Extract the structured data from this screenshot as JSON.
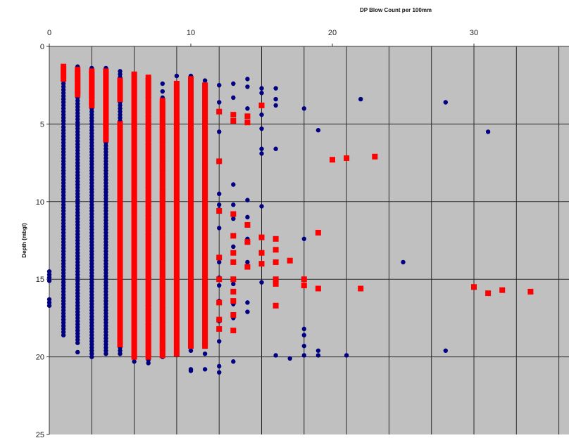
{
  "chart_data": {
    "type": "scatter",
    "title": "",
    "xlabel": "DP Blow Count  per 100mm",
    "ylabel": "Depth (mbgl)",
    "x_axis_position": "top",
    "y_axis_inverted": true,
    "xlim": [
      0,
      36
    ],
    "ylim": [
      0,
      25
    ],
    "x_ticks": [
      0,
      10,
      20,
      30
    ],
    "y_ticks": [
      0,
      5,
      10,
      15,
      20,
      25
    ],
    "x_gridlines": [
      3,
      6,
      9,
      12,
      15,
      18,
      21,
      24,
      27,
      30,
      33,
      36
    ],
    "y_gridlines": [
      5,
      10,
      15,
      20
    ],
    "plot_background": "#c0c0c0",
    "legend": "none",
    "series": [
      {
        "color": "#000080",
        "marker": "circle",
        "columns": [
          {
            "x": 0,
            "depths": [
              14.5,
              14.7,
              14.9,
              15.1,
              16.3,
              16.5,
              16.7
            ]
          },
          {
            "x": 1,
            "depths_range": [
              1.4,
              18.6
            ]
          },
          {
            "x": 2,
            "depths_range": [
              1.3,
              19.2
            ]
          },
          {
            "x": 2,
            "depths": [
              19.7
            ]
          },
          {
            "x": 3,
            "depths_range": [
              1.4,
              20.0
            ]
          },
          {
            "x": 4,
            "depths_range": [
              1.4,
              19.8
            ]
          },
          {
            "x": 5,
            "depths_range": [
              1.6,
              19.8
            ]
          },
          {
            "x": 6,
            "depths": [
              2.0,
              2.5,
              3.1,
              4.2,
              5.3,
              6.1,
              18.3,
              19.4,
              20.0,
              20.3
            ]
          },
          {
            "x": 7,
            "depths": [
              2.5,
              3.0,
              3.5,
              19.0,
              19.6,
              20.2,
              20.4
            ]
          },
          {
            "x": 8,
            "depths": [
              2.4,
              2.9,
              3.3,
              4.2,
              5.0,
              5.9,
              10.7,
              12.4,
              13.5,
              14.4,
              16.2,
              17.5,
              19.1,
              20.0
            ]
          },
          {
            "x": 9,
            "depths": [
              1.9,
              2.5,
              3.0,
              4.5,
              5.0,
              10.3,
              10.6,
              12.2,
              15.2,
              16.3,
              17.1,
              19.4
            ]
          },
          {
            "x": 10,
            "depths": [
              1.9,
              2.8,
              5.5,
              7.0,
              10.0,
              11.0,
              12.6,
              13.3,
              14.2,
              17.0,
              19.6,
              20.8,
              20.9
            ]
          },
          {
            "x": 11,
            "depths": [
              2.2,
              3.2,
              4.6,
              6.3,
              8.5,
              11.2,
              13.2,
              14.6,
              16.5,
              18.4,
              19.8,
              20.8
            ]
          },
          {
            "x": 12,
            "depths": [
              2.5,
              3.6,
              4.2,
              5.5,
              9.5,
              10.2,
              10.5,
              11.7,
              13.9,
              14.9,
              15.4,
              16.4,
              17.7,
              19.0,
              20.6,
              21.0
            ]
          },
          {
            "x": 13,
            "depths": [
              2.4,
              3.3,
              8.9,
              10.2,
              11.1,
              12.9,
              13.3,
              15.3,
              16.6,
              17.5,
              20.3
            ]
          },
          {
            "x": 14,
            "depths": [
              2.1,
              2.6,
              4.0,
              9.9,
              11.0,
              12.4,
              13.9,
              16.5,
              17.1
            ]
          },
          {
            "x": 15,
            "depths": [
              2.7,
              3.0,
              4.4,
              5.3,
              6.6,
              6.9,
              10.3,
              15.2
            ]
          },
          {
            "x": 16,
            "depths": [
              2.7,
              3.4,
              3.8,
              6.6,
              19.9
            ]
          },
          {
            "x": 17,
            "depths": [
              20.1
            ]
          },
          {
            "x": 18,
            "depths": [
              4.0,
              12.4,
              18.2,
              18.6,
              19.3,
              19.9
            ]
          },
          {
            "x": 19,
            "depths": [
              5.4,
              19.6,
              19.9
            ]
          },
          {
            "x": 21,
            "depths": [
              19.9
            ]
          },
          {
            "x": 22,
            "depths": [
              3.4
            ]
          },
          {
            "x": 25,
            "depths": [
              13.9
            ]
          },
          {
            "x": 28,
            "depths": [
              3.6,
              19.6
            ]
          },
          {
            "x": 31,
            "depths": [
              5.5
            ]
          }
        ]
      },
      {
        "color": "#ff0000",
        "marker": "square",
        "columns": [
          {
            "x": 1,
            "depths_range": [
              1.3,
              2.2
            ]
          },
          {
            "x": 2,
            "depths_range": [
              1.5,
              3.1
            ]
          },
          {
            "x": 3,
            "depths_range": [
              1.6,
              3.8
            ]
          },
          {
            "x": 4,
            "depths_range": [
              1.6,
              6.0
            ]
          },
          {
            "x": 5,
            "depths_range": [
              2.2,
              3.5
            ]
          },
          {
            "x": 5,
            "depths_range": [
              5.0,
              19.3
            ]
          },
          {
            "x": 6,
            "depths_range": [
              1.8,
              20.1
            ]
          },
          {
            "x": 7,
            "depths_range": [
              2.0,
              20.0
            ]
          },
          {
            "x": 8,
            "depths_range": [
              3.5,
              20.0
            ]
          },
          {
            "x": 9,
            "depths_range": [
              2.4,
              19.8
            ]
          },
          {
            "x": 10,
            "depths_range": [
              2.1,
              19.4
            ]
          },
          {
            "x": 11,
            "depths_range": [
              2.5,
              19.4
            ]
          },
          {
            "x": 12,
            "depths": [
              4.2,
              7.4,
              10.6,
              13.6,
              15.0,
              16.5,
              17.6,
              18.2
            ]
          },
          {
            "x": 13,
            "depths": [
              4.4,
              4.8,
              10.8,
              12.2,
              13.3,
              13.9,
              15.0,
              15.8,
              16.4,
              17.3,
              18.3
            ]
          },
          {
            "x": 14,
            "depths": [
              4.5,
              4.9,
              11.5,
              12.6,
              14.2
            ]
          },
          {
            "x": 15,
            "depths": [
              3.8,
              12.3,
              13.3,
              14.0
            ]
          },
          {
            "x": 16,
            "depths": [
              12.4,
              13.1,
              13.9,
              15.0,
              15.3,
              16.7
            ]
          },
          {
            "x": 17,
            "depths": [
              13.8
            ]
          },
          {
            "x": 18,
            "depths": [
              15.0,
              15.4
            ]
          },
          {
            "x": 19,
            "depths": [
              12.0,
              15.6
            ]
          },
          {
            "x": 20,
            "depths": [
              7.3
            ]
          },
          {
            "x": 21,
            "depths": [
              7.2
            ]
          },
          {
            "x": 22,
            "depths": [
              15.6
            ]
          },
          {
            "x": 23,
            "depths": [
              7.1
            ]
          },
          {
            "x": 30,
            "depths": [
              15.5
            ]
          },
          {
            "x": 31,
            "depths": [
              15.9
            ]
          },
          {
            "x": 32,
            "depths": [
              15.7
            ]
          },
          {
            "x": 34,
            "depths": [
              15.8
            ]
          }
        ]
      }
    ]
  }
}
